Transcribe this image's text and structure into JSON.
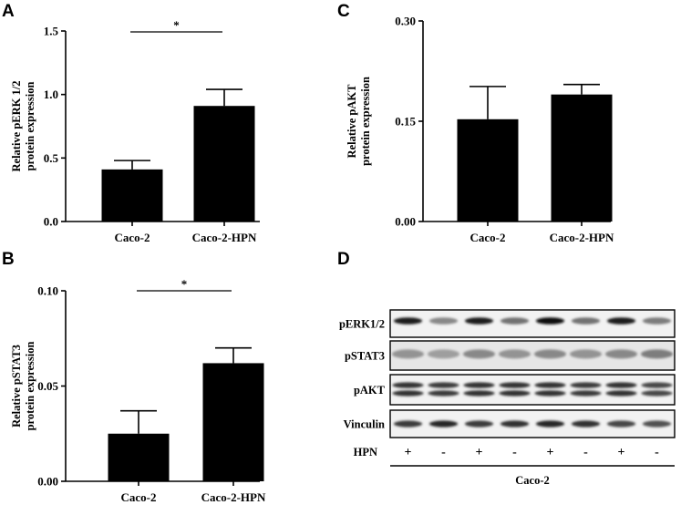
{
  "chart_data": [
    {
      "panel": "A",
      "type": "bar",
      "categories": [
        "Caco-2",
        "Caco-2-HPN"
      ],
      "values": [
        0.41,
        0.91
      ],
      "errors": [
        0.07,
        0.13
      ],
      "ylabel_lines": [
        "Relative pERK 1/2",
        "protein expression"
      ],
      "ylim": [
        0,
        1.5
      ],
      "yticks": [
        0.0,
        0.5,
        1.0,
        1.5
      ],
      "ytick_labels": [
        "0.0",
        "0.5",
        "1.0",
        "1.5"
      ],
      "significance": "*"
    },
    {
      "panel": "B",
      "type": "bar",
      "categories": [
        "Caco-2",
        "Caco-2-HPN"
      ],
      "values": [
        0.025,
        0.062
      ],
      "errors": [
        0.012,
        0.008
      ],
      "ylabel_lines": [
        "Relative pSTAT3",
        "protein expression"
      ],
      "ylim": [
        0,
        0.1
      ],
      "yticks": [
        0.0,
        0.05,
        0.1
      ],
      "ytick_labels": [
        "0.00",
        "0.05",
        "0.10"
      ],
      "significance": "*"
    },
    {
      "panel": "C",
      "type": "bar",
      "categories": [
        "Caco-2",
        "Caco-2-HPN"
      ],
      "values": [
        0.153,
        0.19
      ],
      "errors": [
        0.049,
        0.015
      ],
      "ylabel_lines": [
        "Relative pAKT",
        "protein expression"
      ],
      "ylim": [
        0,
        0.3
      ],
      "yticks": [
        0.0,
        0.15,
        0.3
      ],
      "ytick_labels": [
        "0.00",
        "0.15",
        "0.30"
      ],
      "significance": ""
    }
  ],
  "blot": {
    "panel": "D",
    "rows": [
      "pERK1/2",
      "pSTAT3",
      "pAKT",
      "Vinculin"
    ],
    "lane_count": 8,
    "hpn_label": "HPN",
    "hpn_signs": [
      "+",
      "-",
      "+",
      "-",
      "+",
      "-",
      "+",
      "-"
    ],
    "group_label": "Caco-2",
    "band_intensity": {
      "pERK1/2": [
        0.95,
        0.45,
        0.95,
        0.55,
        1.0,
        0.55,
        0.95,
        0.5
      ],
      "pSTAT3": [
        0.4,
        0.35,
        0.45,
        0.4,
        0.45,
        0.4,
        0.45,
        0.5
      ],
      "pAKT": [
        0.85,
        0.8,
        0.85,
        0.85,
        0.85,
        0.8,
        0.85,
        0.75
      ],
      "Vinculin": [
        0.8,
        0.9,
        0.8,
        0.85,
        0.9,
        0.85,
        0.75,
        0.7
      ]
    }
  }
}
